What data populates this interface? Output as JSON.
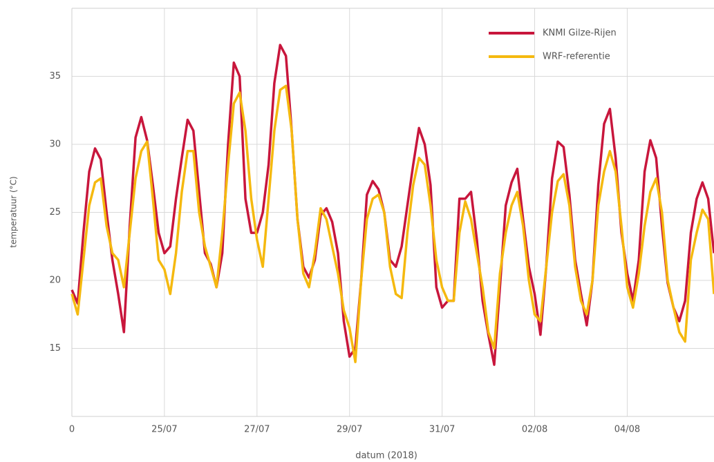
{
  "chart_data": {
    "type": "line",
    "x_label": "datum (2018)",
    "y_label": "temperatuur (°C)",
    "x": [
      0,
      3,
      6,
      9,
      12,
      15,
      18,
      21,
      24,
      27,
      30,
      33,
      36,
      39,
      42,
      45,
      48,
      51,
      54,
      57,
      60,
      63,
      66,
      69,
      72,
      75,
      78,
      81,
      84,
      87,
      90,
      93,
      96,
      99,
      102,
      105,
      108,
      111,
      114,
      117,
      120,
      123,
      126,
      129,
      132,
      135,
      138,
      141,
      144,
      147,
      150,
      153,
      156,
      159,
      162,
      165,
      168,
      171,
      174,
      177,
      180,
      183,
      186,
      189,
      192,
      195,
      198,
      201,
      204,
      207,
      210,
      213,
      216,
      219,
      222,
      225,
      228,
      231,
      234,
      237,
      240,
      243,
      246,
      249,
      252,
      255,
      258,
      261,
      264,
      267,
      270,
      273,
      276,
      279,
      282,
      285,
      288,
      291,
      294,
      297,
      300,
      303,
      306,
      309,
      312,
      315,
      318,
      321,
      324,
      327,
      330,
      333
    ],
    "series": [
      {
        "name": "KNMI Gilze-Rijen",
        "color": "#c8163c",
        "values": [
          19.3,
          18.3,
          23.5,
          28,
          29.7,
          28.9,
          25,
          21.5,
          19,
          16.2,
          24,
          30.5,
          32,
          30.3,
          27,
          23.5,
          22,
          22.5,
          26,
          29,
          31.8,
          31,
          26.5,
          22,
          21.2,
          19.5,
          22,
          30,
          36,
          35,
          26,
          23.5,
          23.5,
          25,
          28.5,
          34.5,
          37.3,
          36.5,
          31,
          24.5,
          21,
          20.2,
          21.5,
          24.8,
          25.3,
          24.3,
          22,
          17,
          14.4,
          15,
          20,
          26.3,
          27.3,
          26.7,
          25,
          21.5,
          21,
          22.5,
          25.5,
          28.5,
          31.2,
          30,
          27,
          19.5,
          18,
          18.5,
          18.5,
          26,
          26,
          26.5,
          23,
          18.5,
          16,
          13.8,
          19.5,
          25.5,
          27.2,
          28.2,
          24.5,
          21,
          19,
          16,
          21,
          27.5,
          30.2,
          29.8,
          26.3,
          21.5,
          19,
          16.7,
          20,
          27,
          31.5,
          32.6,
          29,
          23.5,
          20.5,
          18.5,
          21.5,
          28,
          30.3,
          29,
          24,
          19.8,
          18,
          17,
          18.5,
          23.5,
          26,
          27.2,
          26,
          22
        ]
      },
      {
        "name": "WRF-referentie",
        "color": "#f5b90f",
        "values": [
          19,
          17.5,
          21.5,
          25.5,
          27.2,
          27.5,
          24,
          22,
          21.5,
          19.5,
          23.5,
          27.5,
          29.5,
          30.2,
          26,
          21.5,
          20.8,
          19,
          22,
          26.5,
          29.5,
          29.5,
          25,
          22.5,
          21,
          19.5,
          23.5,
          28.5,
          33,
          33.8,
          31,
          26,
          23,
          21,
          26,
          31,
          34,
          34.3,
          31,
          24.5,
          20.5,
          19.5,
          22,
          25.3,
          24.5,
          22.5,
          20.5,
          17.8,
          16.5,
          14,
          20,
          24.5,
          26,
          26.3,
          25,
          21,
          19,
          18.7,
          23.5,
          27,
          29,
          28.5,
          25.5,
          21.5,
          19.5,
          18.5,
          18.5,
          23.5,
          25.8,
          24.5,
          22,
          19.5,
          16.2,
          15,
          20.5,
          23.5,
          25.5,
          26.5,
          24,
          20,
          17.5,
          17,
          21,
          25,
          27.3,
          27.8,
          25.5,
          21,
          18.5,
          17.5,
          20,
          25.5,
          28,
          29.5,
          28,
          24,
          19.5,
          18,
          20.5,
          24,
          26.5,
          27.5,
          25,
          20,
          18,
          16.2,
          15.5,
          21.5,
          23.5,
          25.2,
          24.5,
          19
        ]
      }
    ],
    "xlim": [
      0,
      333
    ],
    "xticks": [
      0,
      {
        "value": 48,
        "label": "25/07"
      },
      {
        "value": 96,
        "label": "27/07"
      },
      {
        "value": 144,
        "label": "29/07"
      },
      {
        "value": 192,
        "label": "31/07"
      },
      {
        "value": 240,
        "label": "02/08"
      },
      {
        "value": 288,
        "label": "04/08"
      }
    ],
    "ylim": [
      10,
      40
    ],
    "yticks": [
      15,
      20,
      25,
      30,
      35
    ],
    "grid": true,
    "legend_loc": "upper right"
  }
}
